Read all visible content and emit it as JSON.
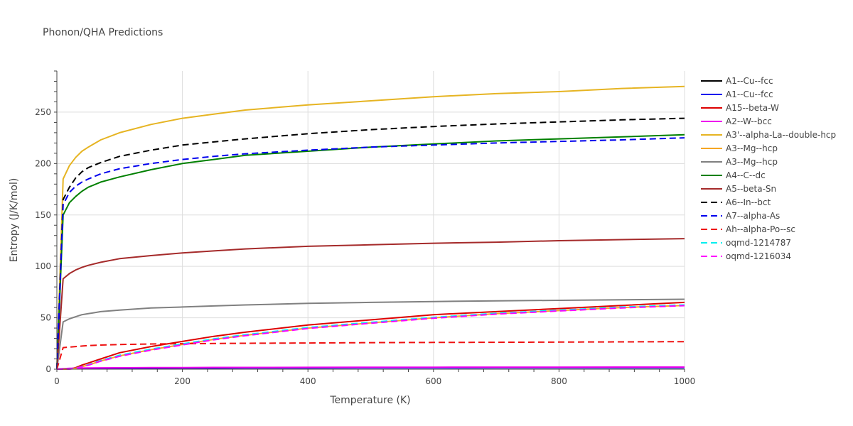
{
  "chart_data": {
    "type": "line",
    "title": "Phonon/QHA Predictions",
    "xlabel": "Temperature (K)",
    "ylabel": "Entropy (J/K/mol)",
    "xlim": [
      0,
      1000
    ],
    "ylim": [
      0,
      290
    ],
    "xticks": [
      0,
      200,
      400,
      600,
      800,
      1000
    ],
    "yticks": [
      0,
      50,
      100,
      150,
      200,
      250
    ],
    "grid": true,
    "legend_position": "right",
    "x": [
      0,
      10,
      20,
      30,
      40,
      50,
      70,
      100,
      150,
      200,
      250,
      300,
      400,
      500,
      600,
      700,
      800,
      900,
      1000
    ],
    "series": [
      {
        "name": "A1--Cu--fcc",
        "color": "#000000",
        "dash": "solid",
        "values": [
          0,
          0.3,
          0.5,
          0.6,
          0.7,
          0.8,
          0.9,
          1.0,
          1.1,
          1.2,
          1.2,
          1.3,
          1.3,
          1.4,
          1.4,
          1.5,
          1.5,
          1.5,
          1.6
        ]
      },
      {
        "name": "A1--Cu--fcc",
        "color": "#0000ee",
        "dash": "solid",
        "values": [
          0,
          0.3,
          0.5,
          0.6,
          0.7,
          0.8,
          0.9,
          1.0,
          1.1,
          1.2,
          1.2,
          1.3,
          1.3,
          1.4,
          1.4,
          1.5,
          1.5,
          1.5,
          1.6
        ]
      },
      {
        "name": "A15--beta-W",
        "color": "#dd0000",
        "dash": "solid",
        "values": [
          0,
          0,
          0.2,
          1.5,
          4,
          6,
          10,
          16,
          22,
          27,
          32,
          36,
          43,
          48,
          53,
          56,
          59,
          62,
          65
        ]
      },
      {
        "name": "A2--W--bcc",
        "color": "#ee00ee",
        "dash": "solid",
        "values": [
          0,
          0.5,
          0.8,
          1.0,
          1.1,
          1.2,
          1.3,
          1.4,
          1.5,
          1.6,
          1.7,
          1.7,
          1.8,
          1.9,
          1.9,
          2.0,
          2.0,
          2.1,
          2.1
        ]
      },
      {
        "name": "A3'--alpha-La--double-hcp",
        "color": "#e6b422",
        "dash": "solid",
        "values": [
          0,
          185,
          198,
          206,
          212,
          216,
          223,
          230,
          238,
          244,
          248,
          252,
          257,
          261,
          265,
          268,
          270,
          273,
          275
        ]
      },
      {
        "name": "A3--Mg--hcp",
        "color": "#f5a623",
        "dash": "solid",
        "values": [
          0,
          0,
          0.1,
          0.8,
          2.5,
          4,
          8,
          13,
          19,
          24,
          29,
          33,
          40,
          45,
          50,
          54,
          57,
          60,
          62
        ]
      },
      {
        "name": "A3--Mg--hcp",
        "color": "#808080",
        "dash": "solid",
        "values": [
          0,
          46,
          49,
          51,
          53,
          54,
          56,
          57.5,
          59.5,
          60.5,
          61.5,
          62.5,
          64,
          65,
          65.8,
          66.5,
          67,
          67.5,
          68
        ]
      },
      {
        "name": "A4--C--dc",
        "color": "#008000",
        "dash": "solid",
        "values": [
          0,
          150,
          162,
          168,
          173,
          177,
          182,
          187,
          194,
          200,
          204,
          208,
          212,
          216,
          219,
          222,
          224,
          226,
          228
        ]
      },
      {
        "name": "A5--beta-Sn",
        "color": "#a52a2a",
        "dash": "solid",
        "values": [
          0,
          88,
          93,
          96.5,
          99,
          101,
          104,
          107.5,
          110.5,
          113,
          115,
          117,
          119.5,
          121,
          122.5,
          123.5,
          125,
          126,
          127
        ]
      },
      {
        "name": "A6--In--bct",
        "color": "#000000",
        "dash": "dash",
        "values": [
          0,
          165,
          177,
          186,
          192,
          196,
          201,
          207,
          213,
          218,
          221,
          224,
          229,
          233,
          236,
          238.5,
          240.5,
          242.5,
          244
        ]
      },
      {
        "name": "A7--alpha-As",
        "color": "#0000ee",
        "dash": "dash",
        "values": [
          0,
          160,
          172,
          178,
          182,
          185,
          190,
          195,
          200,
          204,
          207,
          209.5,
          213,
          216,
          218,
          220,
          221.5,
          223,
          225
        ]
      },
      {
        "name": "Ah--alpha-Po--sc",
        "color": "#ee1111",
        "dash": "dash",
        "values": [
          0,
          21,
          21.5,
          22,
          22.5,
          23,
          23.5,
          24,
          24.5,
          24.8,
          25,
          25.2,
          25.5,
          25.8,
          26,
          26.2,
          26.4,
          26.6,
          26.8
        ]
      },
      {
        "name": "oqmd-1214787",
        "color": "#00eeee",
        "dash": "dash",
        "values": [
          0,
          0,
          0.2,
          0.9,
          2.7,
          4.3,
          8.4,
          13.5,
          19.5,
          24.6,
          29.5,
          33.5,
          40.5,
          45.6,
          50.4,
          54.4,
          57.4,
          60.4,
          62.5
        ]
      },
      {
        "name": "oqmd-1216034",
        "color": "#ff00ff",
        "dash": "dash",
        "values": [
          0,
          0,
          0.1,
          0.7,
          2.4,
          3.9,
          7.8,
          12.6,
          18.6,
          23.6,
          28.6,
          32.6,
          39.6,
          44.7,
          49.6,
          53.6,
          56.6,
          59.6,
          61.8
        ]
      }
    ]
  }
}
